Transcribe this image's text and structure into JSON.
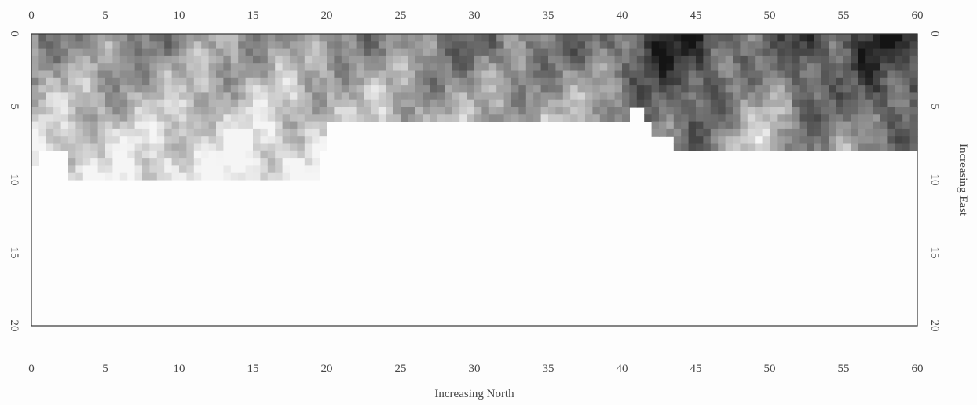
{
  "chart_data": {
    "type": "heatmap",
    "title": "",
    "xlabel": "Increasing North",
    "ylabel": "Increasing East",
    "xlim": [
      0,
      60
    ],
    "ylim": [
      0,
      20
    ],
    "x_ticks": [
      0,
      5,
      10,
      15,
      20,
      25,
      30,
      35,
      40,
      45,
      50,
      55,
      60
    ],
    "y_ticks": [
      0,
      5,
      10,
      15,
      20
    ],
    "y_axis_inverted": true,
    "colormap": "grayscale (dark = high, light = low)",
    "background_color": "#fdfdfd",
    "grid": false,
    "coverage_depth_by_north": [
      {
        "north_from": 0,
        "north_to": 0.5,
        "east_depth": 9
      },
      {
        "north_from": 0.5,
        "north_to": 2.5,
        "east_depth": 8
      },
      {
        "north_from": 2.5,
        "north_to": 19.5,
        "east_depth": 10
      },
      {
        "north_from": 19.5,
        "north_to": 20,
        "east_depth": 8
      },
      {
        "north_from": 20,
        "north_to": 40.5,
        "east_depth": 6
      },
      {
        "north_from": 40.5,
        "north_to": 41.5,
        "east_depth": 5
      },
      {
        "north_from": 41.5,
        "north_to": 42,
        "east_depth": 6
      },
      {
        "north_from": 42,
        "north_to": 43.5,
        "east_depth": 7
      },
      {
        "north_from": 43.5,
        "north_to": 60,
        "east_depth": 8
      }
    ],
    "intensity_profile_by_north": [
      {
        "north": 0,
        "value": 0.45
      },
      {
        "north": 5,
        "value": 0.5
      },
      {
        "north": 10,
        "value": 0.45
      },
      {
        "north": 15,
        "value": 0.4
      },
      {
        "north": 20,
        "value": 0.45
      },
      {
        "north": 25,
        "value": 0.5
      },
      {
        "north": 30,
        "value": 0.6
      },
      {
        "north": 35,
        "value": 0.55
      },
      {
        "north": 40,
        "value": 0.65
      },
      {
        "north": 42,
        "value": 0.85
      },
      {
        "north": 45,
        "value": 0.9
      },
      {
        "north": 48,
        "value": 0.6
      },
      {
        "north": 50,
        "value": 0.55
      },
      {
        "north": 52,
        "value": 0.85
      },
      {
        "north": 55,
        "value": 0.7
      },
      {
        "north": 57,
        "value": 0.9
      },
      {
        "north": 60,
        "value": 0.85
      }
    ],
    "intensity_decrease_with_east": 0.45
  }
}
